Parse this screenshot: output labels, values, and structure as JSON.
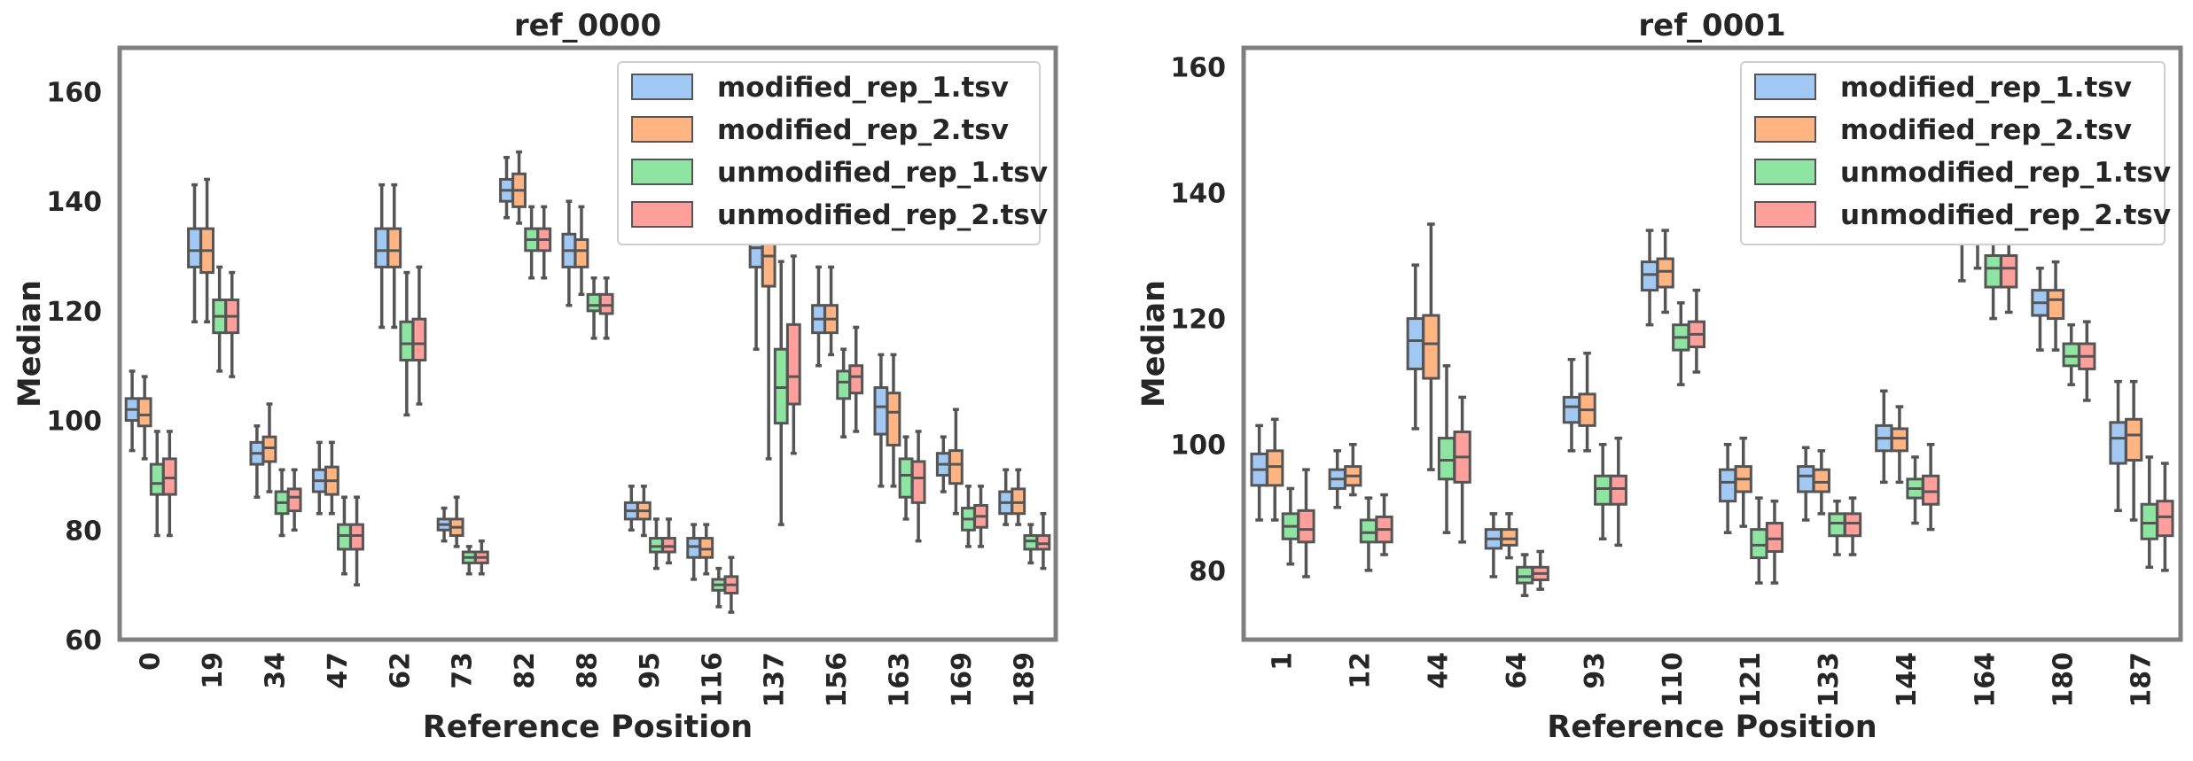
{
  "colors": {
    "series": [
      "#a1c9f4",
      "#ffb482",
      "#8de5a1",
      "#ff9f9b"
    ],
    "box_edge": "#555555",
    "frame": "#808080",
    "text": "#262626"
  },
  "chart_data": [
    {
      "type": "box",
      "title": "ref_0000",
      "xlabel": "Reference Position",
      "ylabel": "Median",
      "ylim": [
        60,
        168
      ],
      "yticks": [
        60,
        80,
        100,
        120,
        140,
        160
      ],
      "grid": false,
      "legend_position": "top-right",
      "categories": [
        "0",
        "19",
        "34",
        "47",
        "62",
        "73",
        "82",
        "88",
        "95",
        "116",
        "137",
        "156",
        "163",
        "169",
        "189"
      ],
      "series": [
        {
          "name": "modified_rep_1.tsv",
          "boxes": [
            [
              94.5,
              100,
              102,
              104,
              109
            ],
            [
              118,
              128,
              131,
              135,
              143
            ],
            [
              86,
              92,
              94,
              96,
              99
            ],
            [
              83,
              87,
              89,
              91,
              96
            ],
            [
              117,
              128,
              131,
              135,
              143
            ],
            [
              78,
              80,
              81,
              82,
              84
            ],
            [
              137,
              140,
              142,
              144,
              148
            ],
            [
              121,
              128,
              131,
              134,
              140
            ],
            [
              80,
              82,
              83.5,
              85,
              88
            ],
            [
              71,
              75,
              77,
              78.5,
              81
            ],
            [
              113,
              128,
              131.5,
              135,
              145
            ],
            [
              110,
              116,
              118.5,
              121,
              128
            ],
            [
              88,
              97.5,
              102.5,
              106,
              112
            ],
            [
              87,
              90,
              92,
              94,
              97
            ],
            [
              81,
              83,
              85,
              87,
              91
            ]
          ]
        },
        {
          "name": "modified_rep_2.tsv",
          "boxes": [
            [
              93,
              99,
              101,
              104,
              108
            ],
            [
              118,
              127,
              131,
              135,
              144
            ],
            [
              87,
              92.5,
              95,
              97,
              103
            ],
            [
              83,
              86.5,
              89,
              91.5,
              96
            ],
            [
              117,
              128,
              131,
              135,
              143
            ],
            [
              77,
              79,
              80.5,
              82,
              86
            ],
            [
              136,
              139,
              142,
              145,
              149
            ],
            [
              123,
              128,
              131,
              133,
              139
            ],
            [
              79,
              82,
              83.5,
              85,
              88
            ],
            [
              72,
              75,
              76.5,
              78.5,
              81
            ],
            [
              93,
              124.5,
              130,
              135,
              143
            ],
            [
              112,
              116,
              118.5,
              121,
              128
            ],
            [
              88,
              95.5,
              101.5,
              105,
              112
            ],
            [
              83,
              88.5,
              92,
              94.5,
              102
            ],
            [
              81,
              83,
              85,
              87.5,
              91
            ]
          ]
        },
        {
          "name": "unmodified_rep_1.tsv",
          "boxes": [
            [
              79,
              86.5,
              88.5,
              92,
              98
            ],
            [
              109,
              116,
              119,
              122,
              128
            ],
            [
              79,
              83,
              85,
              87,
              91
            ],
            [
              72,
              76.5,
              79,
              81,
              86
            ],
            [
              101,
              111,
              114,
              118,
              127
            ],
            [
              72,
              74,
              75,
              76,
              77
            ],
            [
              126,
              131,
              133,
              135,
              139
            ],
            [
              115,
              120,
              121,
              123,
              126
            ],
            [
              73,
              76,
              77,
              78.5,
              82
            ],
            [
              66,
              69,
              70,
              71,
              73
            ],
            [
              81,
              99.5,
              106,
              113,
              129
            ],
            [
              97,
              104,
              107,
              109,
              113
            ],
            [
              82,
              86,
              90,
              93,
              97
            ],
            [
              77,
              80,
              82,
              84,
              88
            ],
            [
              74,
              76.5,
              78,
              79,
              81
            ]
          ]
        },
        {
          "name": "unmodified_rep_2.tsv",
          "boxes": [
            [
              79,
              86.5,
              89.5,
              93,
              98
            ],
            [
              108,
              116,
              119,
              122,
              127
            ],
            [
              80,
              83.5,
              86,
              87.5,
              91
            ],
            [
              70,
              76.5,
              79,
              81,
              86
            ],
            [
              103,
              111,
              114,
              118.5,
              128
            ],
            [
              72,
              74,
              75,
              76,
              78
            ],
            [
              126,
              131,
              133,
              135,
              139
            ],
            [
              115,
              119.5,
              121,
              123,
              126
            ],
            [
              74,
              76,
              77,
              78.5,
              82
            ],
            [
              65,
              68.5,
              70,
              71.5,
              75
            ],
            [
              94,
              103,
              108,
              117.5,
              130
            ],
            [
              98,
              105,
              108,
              110,
              117
            ],
            [
              78,
              85,
              89.5,
              92.5,
              98
            ],
            [
              77,
              80.5,
              82.5,
              84.5,
              88
            ],
            [
              73,
              76.5,
              77.5,
              79,
              83
            ]
          ]
        }
      ]
    },
    {
      "type": "box",
      "title": "ref_0001",
      "xlabel": "Reference Position",
      "ylabel": "Median",
      "ylim": [
        69,
        163
      ],
      "yticks": [
        80,
        100,
        120,
        140,
        160
      ],
      "grid": false,
      "legend_position": "top-right",
      "categories": [
        "1",
        "12",
        "44",
        "64",
        "93",
        "110",
        "121",
        "133",
        "144",
        "164",
        "180",
        "187"
      ],
      "series": [
        {
          "name": "modified_rep_1.tsv",
          "boxes": [
            [
              88,
              93.5,
              96,
              98.5,
              103
            ],
            [
              90,
              93,
              94.5,
              96,
              99
            ],
            [
              102.5,
              112,
              116.5,
              120,
              128.5
            ],
            [
              79,
              83.5,
              85,
              86.5,
              89
            ],
            [
              99,
              103.5,
              106,
              107.5,
              113.5
            ],
            [
              119,
              124.5,
              127,
              129,
              134
            ],
            [
              86,
              91,
              94,
              96,
              100
            ],
            [
              88,
              92.5,
              95,
              96.5,
              99.5
            ],
            [
              94,
              99,
              101,
              103,
              108.5
            ],
            [
              126,
              132,
              135,
              138,
              143
            ],
            [
              115,
              120.5,
              122.5,
              124.5,
              128
            ],
            [
              89.5,
              97,
              101,
              103.5,
              110
            ]
          ]
        },
        {
          "name": "modified_rep_2.tsv",
          "boxes": [
            [
              88,
              93.5,
              96.5,
              99,
              104
            ],
            [
              92,
              93.5,
              95,
              96.5,
              100
            ],
            [
              96,
              110.5,
              116,
              120.5,
              135
            ],
            [
              82,
              84,
              85,
              86.5,
              89
            ],
            [
              99,
              103,
              105.5,
              108,
              114.5
            ],
            [
              121,
              125,
              127.5,
              129.5,
              134
            ],
            [
              87,
              92.5,
              94.5,
              96.5,
              101
            ],
            [
              89,
              92.5,
              94,
              96,
              99
            ],
            [
              94,
              99,
              101,
              102.5,
              106
            ],
            [
              128,
              133,
              135.5,
              138,
              143
            ],
            [
              115,
              120,
              123,
              124.5,
              129
            ],
            [
              88,
              97.5,
              101.5,
              104,
              110
            ]
          ]
        },
        {
          "name": "unmodified_rep_1.tsv",
          "boxes": [
            [
              81,
              85,
              87,
              89,
              93
            ],
            [
              80,
              84.5,
              86,
              88,
              91.5
            ],
            [
              86,
              94.5,
              97.5,
              101,
              112.5
            ],
            [
              76,
              78,
              79,
              80.5,
              82.5
            ],
            [
              85,
              90.5,
              93,
              95,
              100
            ],
            [
              109.5,
              115,
              117,
              119,
              122.5
            ],
            [
              78,
              82,
              84,
              86.5,
              91.5
            ],
            [
              82.5,
              85.5,
              87.5,
              89,
              91
            ],
            [
              87.5,
              91.5,
              93,
              94.5,
              98
            ],
            [
              120,
              125,
              128,
              130,
              134
            ],
            [
              109.5,
              112.5,
              114,
              116,
              119
            ],
            [
              80.5,
              85,
              87.5,
              90.5,
              98
            ]
          ]
        },
        {
          "name": "unmodified_rep_2.tsv",
          "boxes": [
            [
              79,
              84.5,
              86.5,
              89.5,
              96
            ],
            [
              82.5,
              84.5,
              86.5,
              88.5,
              92
            ],
            [
              84.5,
              94,
              98,
              102,
              107.5
            ],
            [
              77,
              78.5,
              79.5,
              80.5,
              83
            ],
            [
              84,
              90.5,
              93,
              95,
              101
            ],
            [
              111.5,
              115.5,
              117.5,
              119.5,
              124.5
            ],
            [
              78,
              83,
              85,
              87.5,
              91
            ],
            [
              82.5,
              85.5,
              87.5,
              89,
              91.5
            ],
            [
              86.5,
              90.5,
              92.5,
              95,
              100
            ],
            [
              121,
              125,
              128,
              130,
              135
            ],
            [
              107,
              112,
              114,
              116,
              119.5
            ],
            [
              80,
              85.5,
              88.5,
              91,
              97
            ]
          ]
        }
      ]
    }
  ]
}
